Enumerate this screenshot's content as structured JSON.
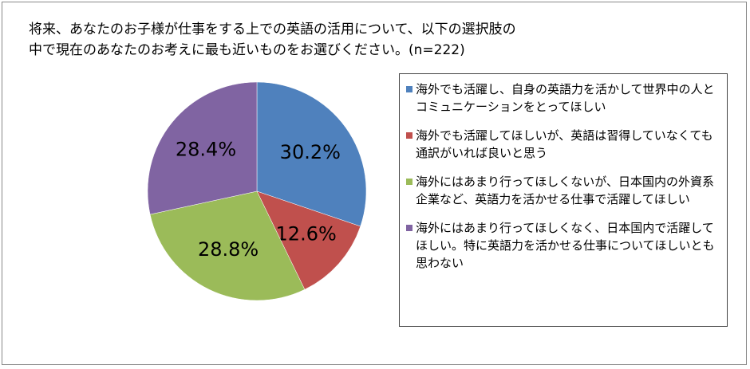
{
  "chart_data": {
    "type": "pie",
    "title": [
      "将来、あなたのお子様が仕事をする上での英語の活用について、以下の選択肢の",
      "中で現在のあなたのお考えに最も近いものをお選びください。(n=222)"
    ],
    "categories": [
      "海外でも活躍し、自身の英語力を活かして世界中の人とコミュニケーションをとってほしい",
      "海外でも活躍してほしいが、英語は習得していなくても通訳がいれば良いと思う",
      "海外にはあまり行ってほしくないが、日本国内の外資系企業など、英語力を活かせる仕事で活躍してほしい",
      "海外にはあまり行ってほしくなく、日本国内で活躍してほしい。特に英語力を活かせる仕事についてほしいとも思わない"
    ],
    "values": [
      30.2,
      12.6,
      28.8,
      28.4
    ],
    "value_labels": [
      "30.2%",
      "12.6%",
      "28.8%",
      "28.4%"
    ],
    "colors": [
      "#4f81bd",
      "#c0504d",
      "#9bbb59",
      "#8064a2"
    ],
    "legend": "right"
  }
}
